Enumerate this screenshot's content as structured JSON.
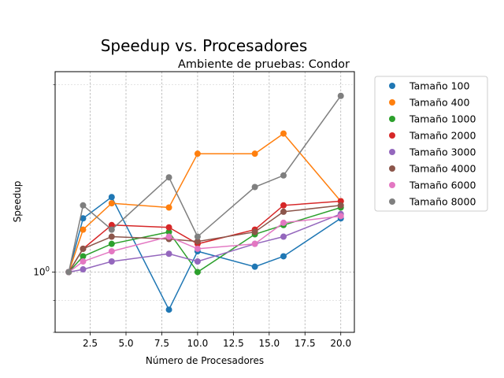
{
  "chart_data": {
    "type": "line",
    "title": "Speedup vs. Procesadores",
    "subtitle": "Ambiente de pruebas: Condor",
    "xlabel": "Número de Procesadores",
    "ylabel": "Speedup",
    "xlim": [
      0.05,
      20.95
    ],
    "ylim": [
      0.8,
      2.1
    ],
    "yscale": "log",
    "grid": true,
    "legend_position": "outside-right",
    "x_ticks": [
      2.5,
      5.0,
      7.5,
      10.0,
      12.5,
      15.0,
      17.5,
      20.0
    ],
    "x_tick_labels": [
      "2.5",
      "5.0",
      "7.5",
      "10.0",
      "12.5",
      "15.0",
      "17.5",
      "20.0"
    ],
    "y_tick_labels": [
      "10^0"
    ],
    "x": [
      1,
      2,
      4,
      8,
      10,
      14,
      16,
      20
    ],
    "series": [
      {
        "name": "Tamaño 100",
        "color": "#1f77b4",
        "values": [
          1.0,
          1.22,
          1.32,
          0.87,
          1.08,
          1.02,
          1.06,
          1.22
        ]
      },
      {
        "name": "Tamaño 400",
        "color": "#ff7f0e",
        "values": [
          1.0,
          1.17,
          1.29,
          1.27,
          1.55,
          1.55,
          1.67,
          1.3
        ]
      },
      {
        "name": "Tamaño 1000",
        "color": "#2ca02c",
        "values": [
          1.0,
          1.06,
          1.11,
          1.16,
          1.0,
          1.15,
          1.19,
          1.27
        ]
      },
      {
        "name": "Tamaño 2000",
        "color": "#d62728",
        "values": [
          1.0,
          1.09,
          1.19,
          1.18,
          1.11,
          1.17,
          1.28,
          1.3
        ]
      },
      {
        "name": "Tamaño 3000",
        "color": "#9467bd",
        "values": [
          1.0,
          1.01,
          1.04,
          1.07,
          1.04,
          1.11,
          1.14,
          1.24
        ]
      },
      {
        "name": "Tamaño 4000",
        "color": "#8c564b",
        "values": [
          1.0,
          1.09,
          1.14,
          1.13,
          1.12,
          1.16,
          1.25,
          1.28
        ]
      },
      {
        "name": "Tamaño 6000",
        "color": "#e377c2",
        "values": [
          1.0,
          1.04,
          1.08,
          1.14,
          1.09,
          1.11,
          1.2,
          1.23
        ]
      },
      {
        "name": "Tamaño 8000",
        "color": "#7f7f7f",
        "values": [
          1.0,
          1.28,
          1.17,
          1.42,
          1.14,
          1.37,
          1.43,
          1.92
        ]
      }
    ]
  }
}
